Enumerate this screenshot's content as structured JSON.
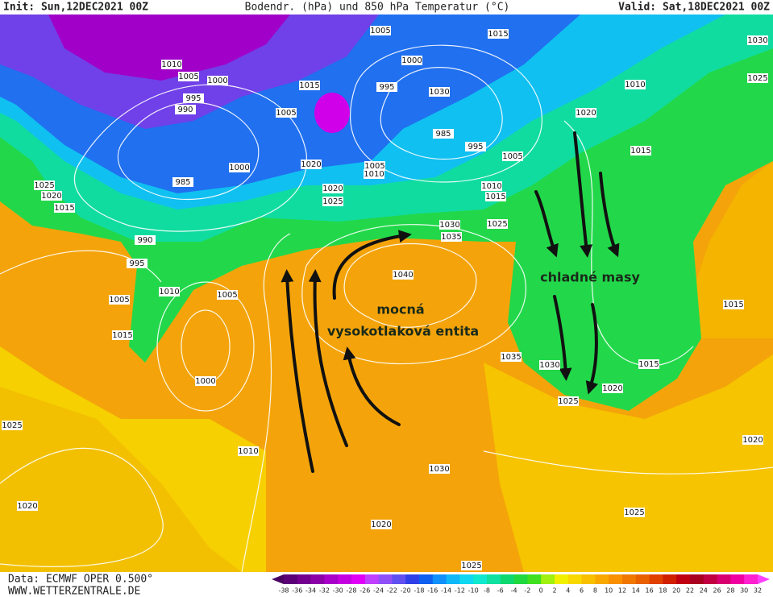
{
  "header": {
    "init": "Init: Sun,12DEC2021 00Z",
    "title": "Bodendr. (hPa) und 850 hPa Temperatur (°C)",
    "valid": "Valid: Sat,18DEC2021 00Z"
  },
  "annotations": [
    "mocná",
    "vysokotlaková entita",
    "chladné masy"
  ],
  "isobar_labels": [
    1005,
    1015,
    1030,
    1010,
    1005,
    1000,
    1000,
    995,
    1030,
    995,
    990,
    1005,
    1015,
    1010,
    1020,
    1025,
    985,
    995,
    1005,
    1015,
    1005,
    1010,
    1000,
    1020,
    985,
    1010,
    1015,
    1025,
    1020,
    1015,
    1020,
    1025,
    1030,
    1035,
    1025,
    990,
    995,
    1010,
    1005,
    1005,
    1040,
    1015,
    1000,
    1035,
    1030,
    1015,
    1020,
    1025,
    1015,
    1025,
    1010,
    1030,
    1020,
    1020,
    1025,
    1020,
    1025
  ],
  "footer": {
    "data_source": "Data: ECMWF OPER 0.500°",
    "website": "WWW.WETTERZENTRALE.DE"
  },
  "color_scale": {
    "ticks": [
      -38,
      -36,
      -34,
      -32,
      -30,
      -28,
      -26,
      -24,
      -22,
      -20,
      -18,
      -16,
      -14,
      -12,
      -10,
      -8,
      -6,
      -4,
      -2,
      0,
      2,
      4,
      6,
      8,
      10,
      12,
      14,
      16,
      18,
      20,
      22,
      24,
      26,
      28,
      30,
      32
    ],
    "colors": [
      "#4a0060",
      "#5c0078",
      "#740090",
      "#8c00a8",
      "#a800c8",
      "#c400e0",
      "#e000f8",
      "#c040ff",
      "#9050f8",
      "#6050f0",
      "#3040e8",
      "#1060f0",
      "#1090f8",
      "#10b8f8",
      "#10d8f0",
      "#10e8d0",
      "#10e0a0",
      "#10d870",
      "#20d840",
      "#40e020",
      "#a0f010",
      "#f0f000",
      "#f8d800",
      "#f8c000",
      "#f8a800",
      "#f89000",
      "#f07800",
      "#e86000",
      "#e04000",
      "#d02000",
      "#c00010",
      "#a80020",
      "#c00040",
      "#d80070",
      "#f000a0",
      "#ff20d0",
      "#ff40ff"
    ]
  }
}
